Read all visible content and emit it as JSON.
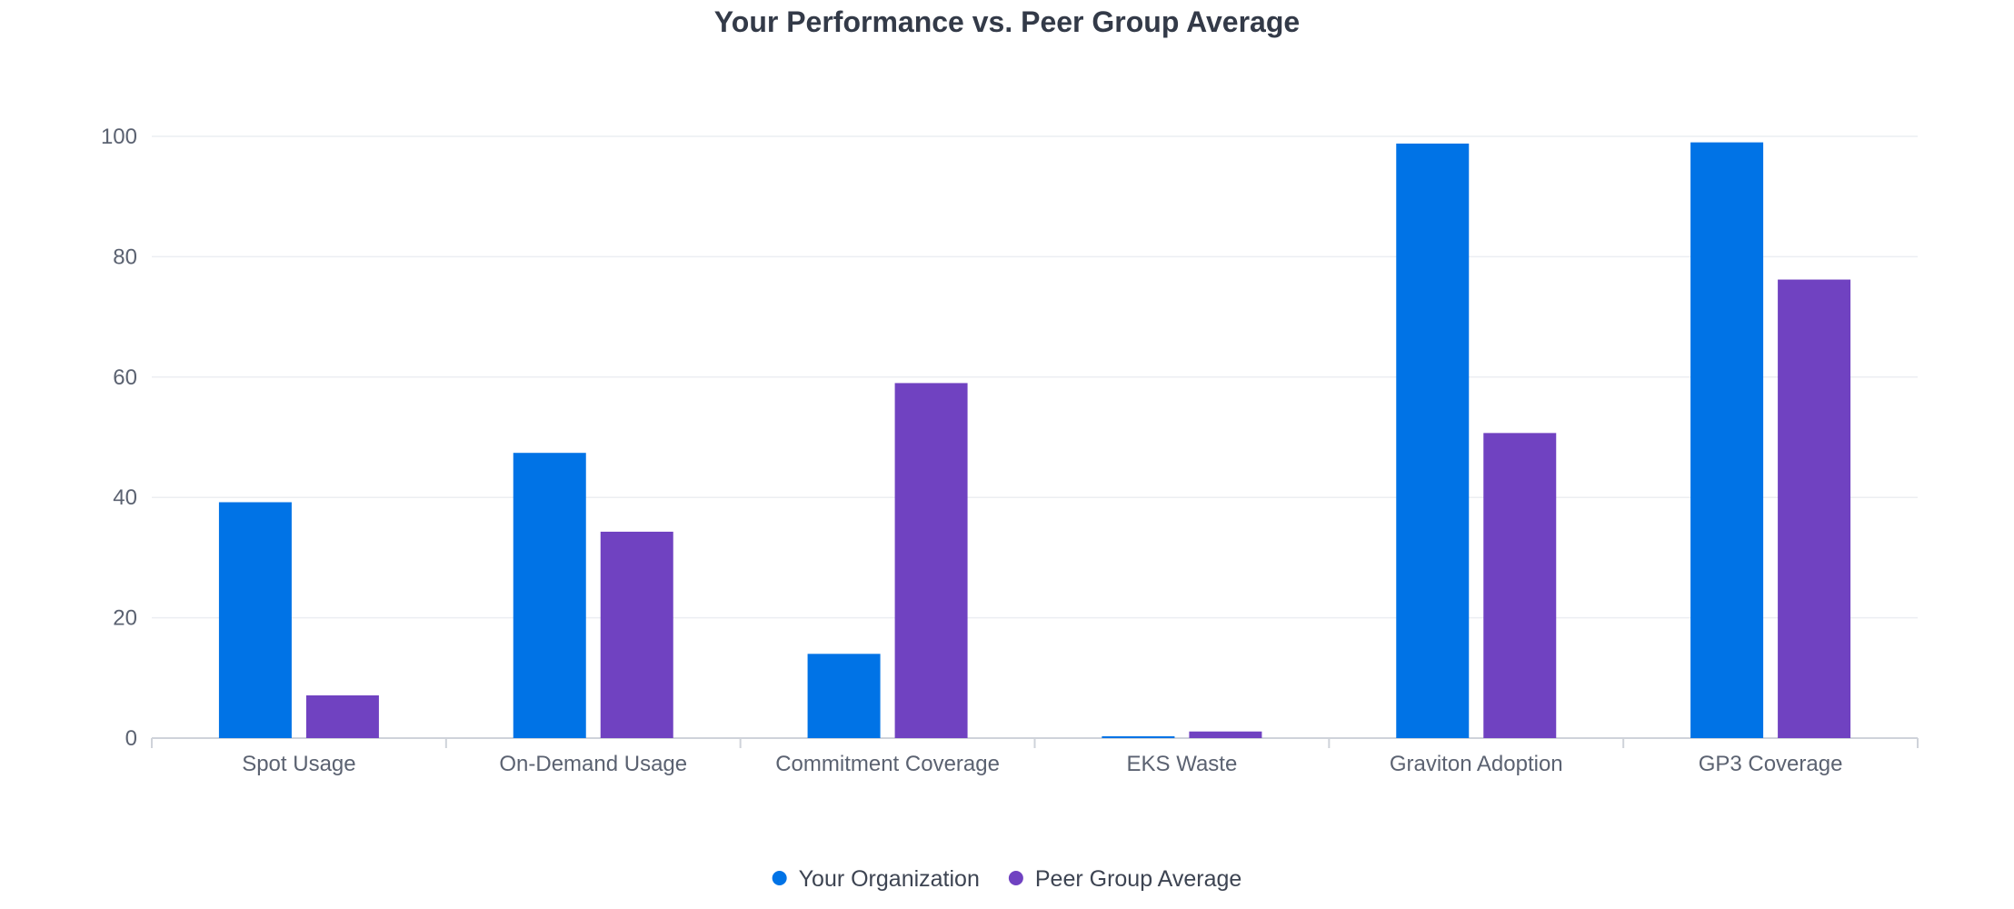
{
  "chart_data": {
    "type": "bar",
    "title": "Your Performance vs. Peer Group Average",
    "categories": [
      "Spot Usage",
      "On-Demand Usage",
      "Commitment Coverage",
      "EKS Waste",
      "Graviton Adoption",
      "GP3 Coverage"
    ],
    "series": [
      {
        "name": "Your Organization",
        "color": "#0073e6",
        "values": [
          39.2,
          47.4,
          14.0,
          0.3,
          98.8,
          99.0
        ]
      },
      {
        "name": "Peer Group Average",
        "color": "#7042c1",
        "values": [
          7.1,
          34.3,
          59.0,
          1.1,
          50.7,
          76.2
        ]
      }
    ],
    "yticks": [
      0,
      20,
      40,
      60,
      80,
      100
    ],
    "ylim": [
      0,
      100
    ],
    "grid": true,
    "legend_position": "bottom-center",
    "xlabel": "",
    "ylabel": ""
  }
}
